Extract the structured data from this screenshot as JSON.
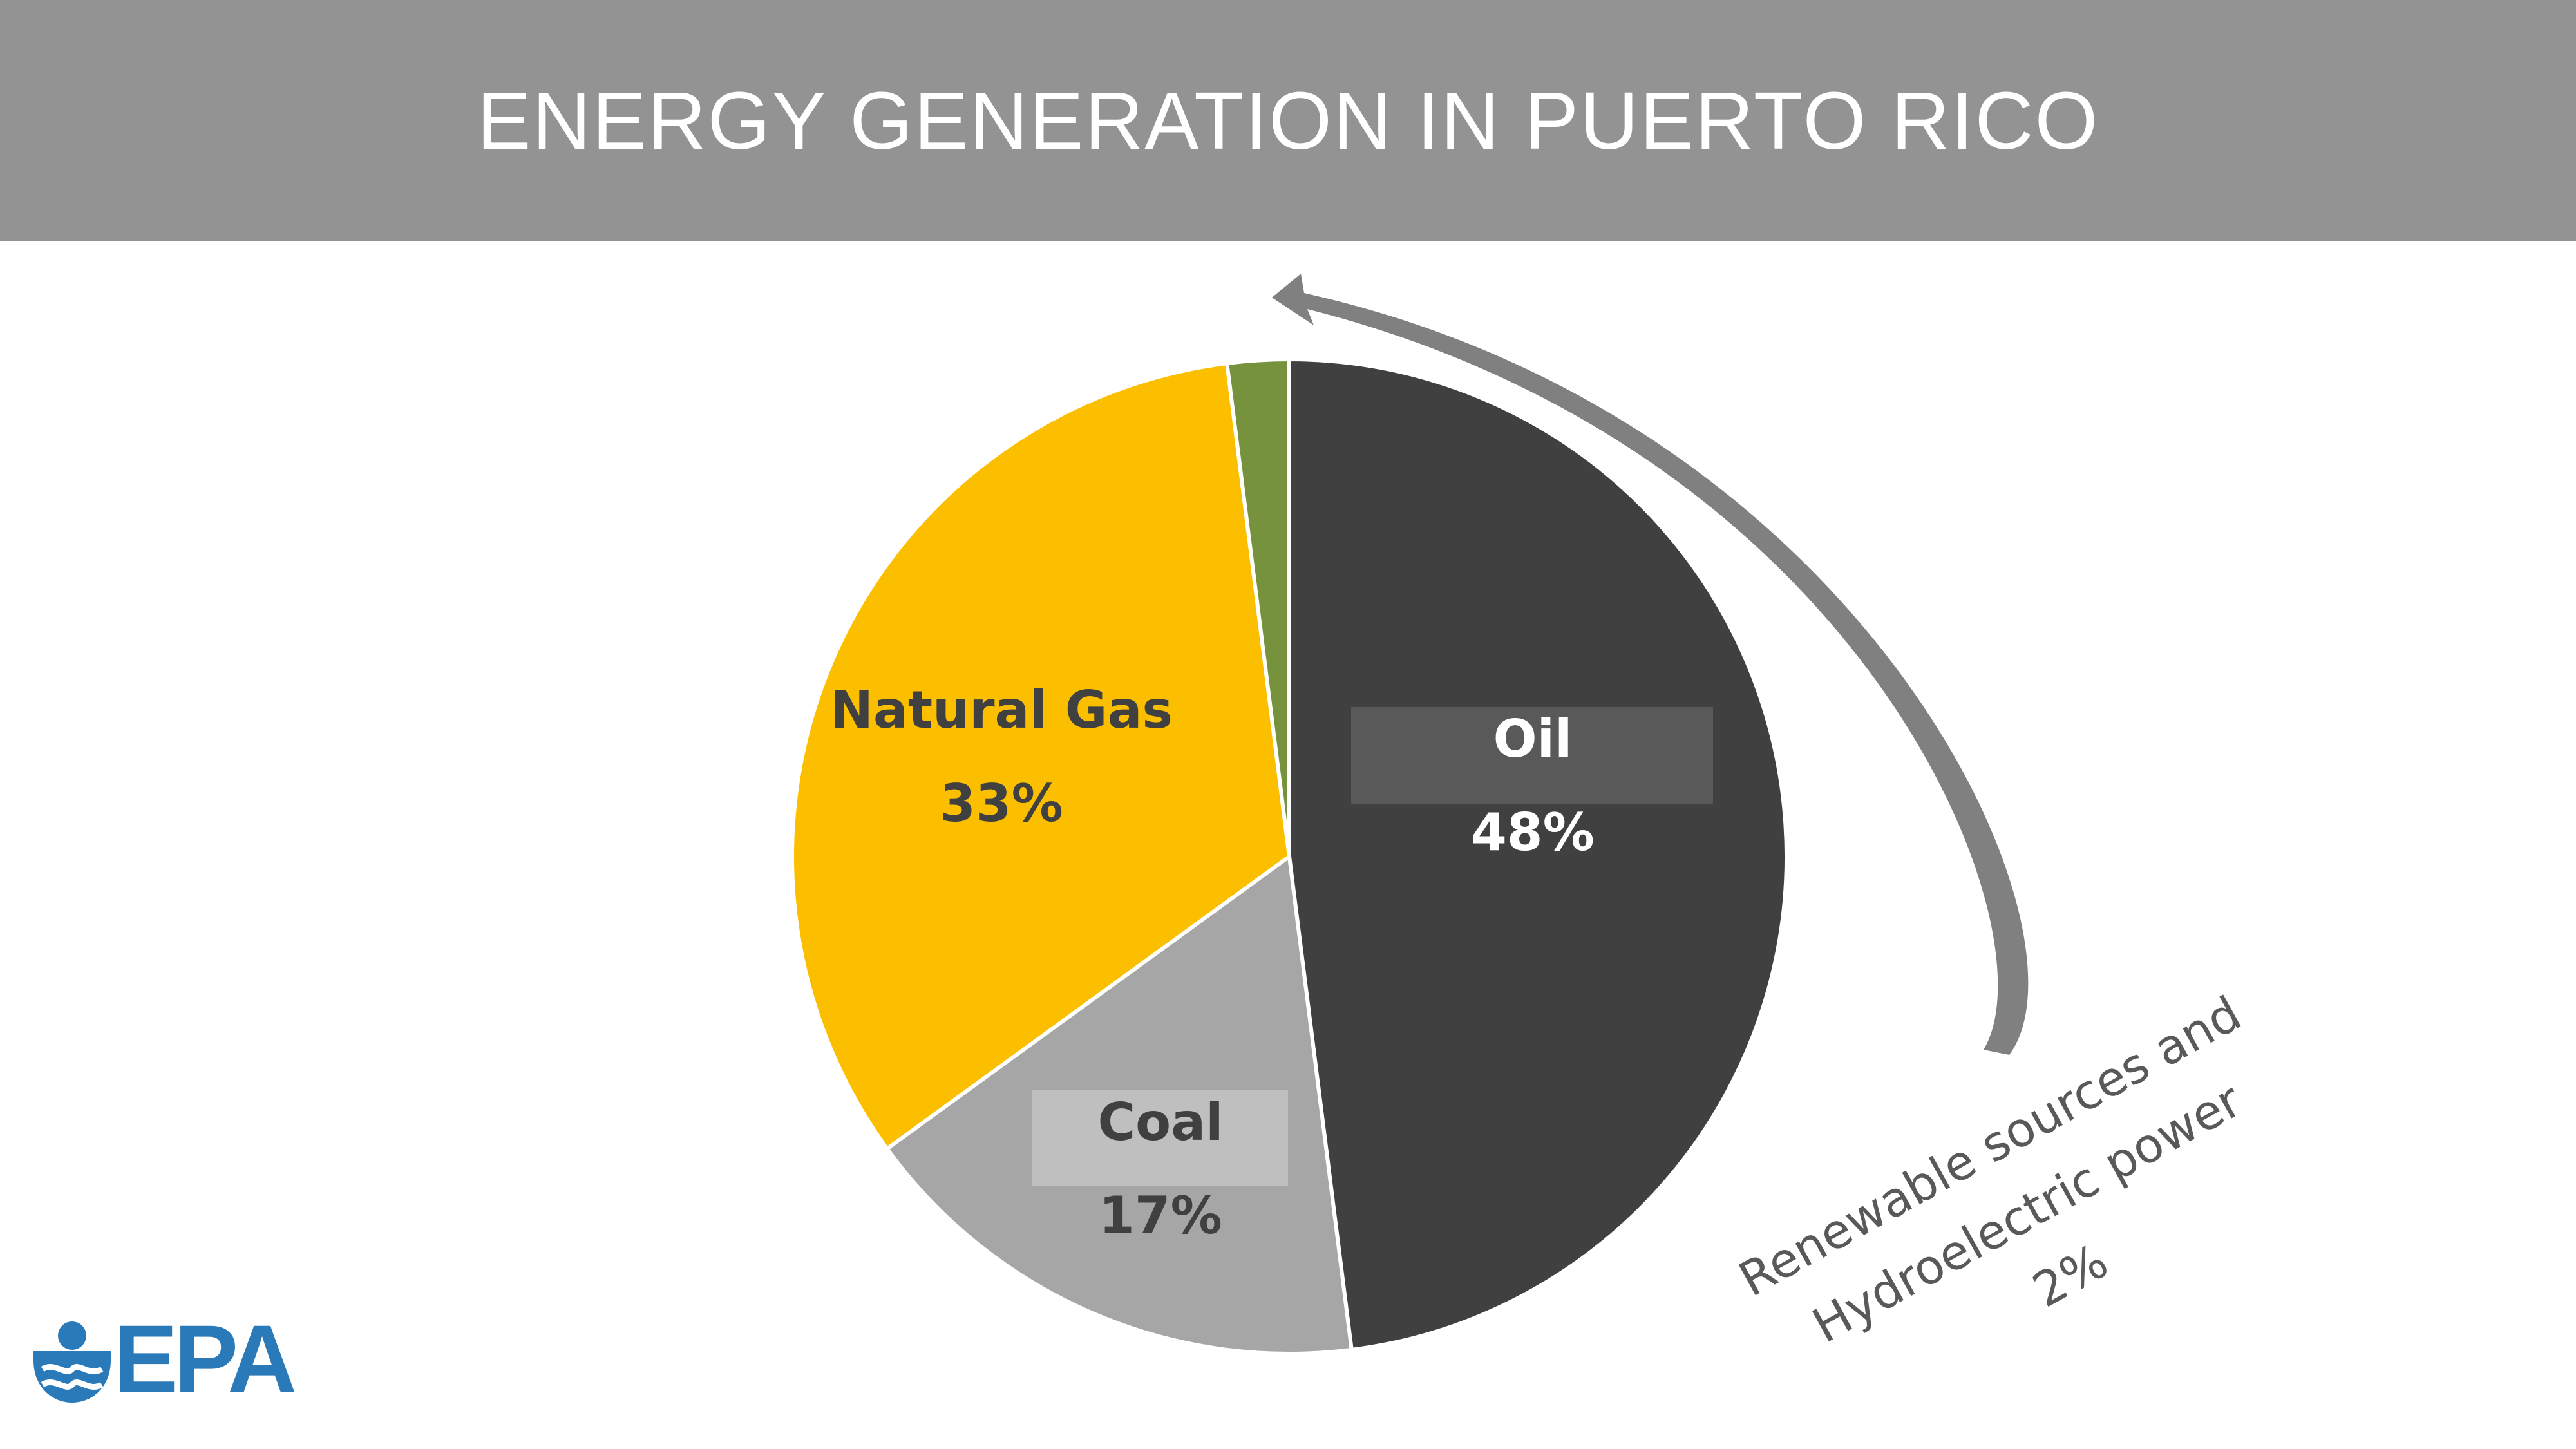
{
  "header": {
    "title": "ENERGY GENERATION IN PUERTO RICO"
  },
  "logo": {
    "text": "EPA",
    "icon": "epa-flower-icon",
    "color": "#2a7ab9"
  },
  "colors": {
    "header_bg": "#939393",
    "header_text": "#ffffff"
  },
  "chart_data": {
    "type": "pie",
    "title": "ENERGY GENERATION IN PUERTO RICO",
    "start": "12 o'clock, clockwise",
    "slices": [
      {
        "label": "Oil",
        "value": 48,
        "value_label": "48%",
        "color": "#404040",
        "label_color": "#ffffff",
        "label_box": "#595959"
      },
      {
        "label": "Coal",
        "value": 17,
        "value_label": "17%",
        "color": "#a6a6a6",
        "label_color": "#404040",
        "label_box": "#bfbfbf"
      },
      {
        "label": "Natural Gas",
        "value": 33,
        "value_label": "33%",
        "color": "#fbbf00",
        "label_color": "#404040",
        "label_box": null
      },
      {
        "label": "Renewable sources and Hydroelectric power",
        "value": 2,
        "value_label": "2%",
        "color": "#76923c",
        "label_color": "#595959",
        "label_box": null
      }
    ],
    "annotation": {
      "lines": [
        "Renewable sources and",
        "Hydroelectric power",
        "2%"
      ],
      "arrow_color": "#808080",
      "points_to": "Renewable sources and Hydroelectric power"
    }
  }
}
